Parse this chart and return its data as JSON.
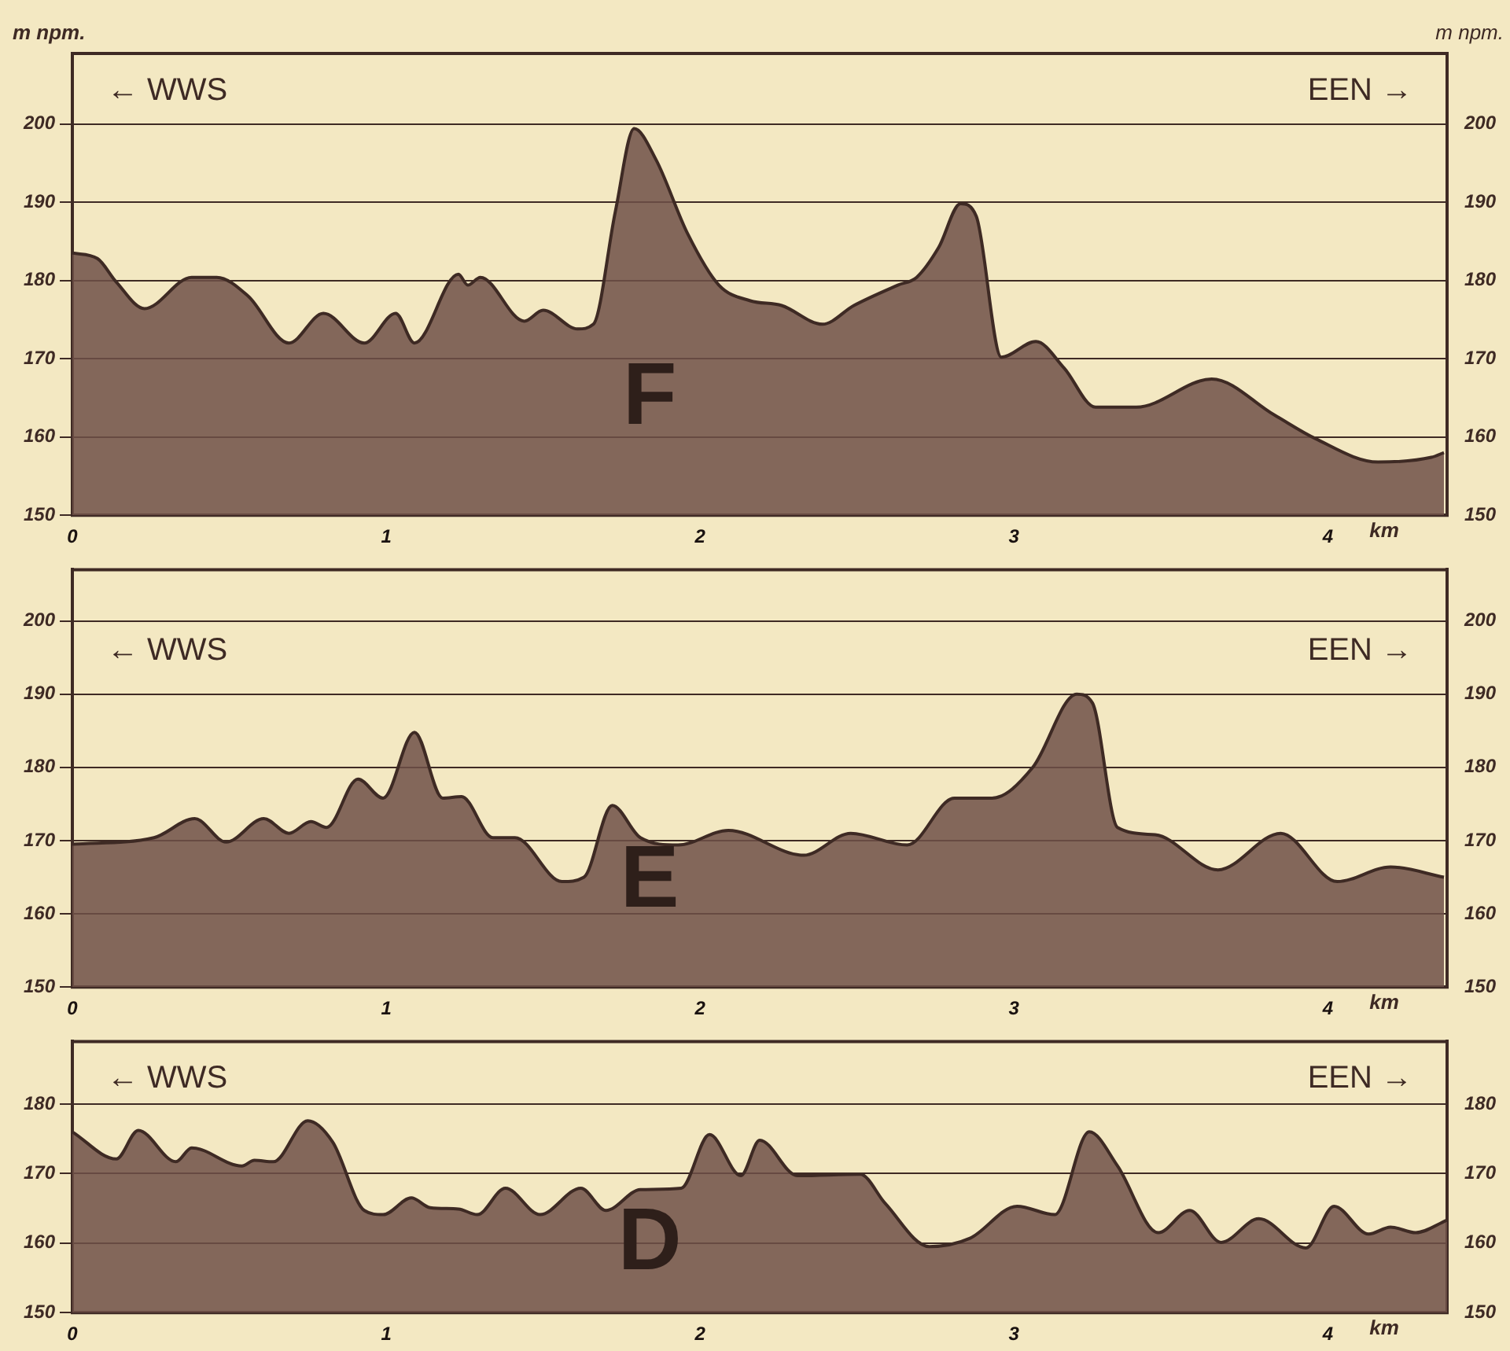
{
  "chart_data": [
    {
      "type": "area",
      "ylabel": "m npm.",
      "y2label": "m npm.",
      "xlabel": "km",
      "annotations": [
        "← WWS",
        "EEN →",
        "F"
      ],
      "color": "#6e5048",
      "x": [
        0,
        0.08,
        0.14,
        0.23,
        0.38,
        0.46,
        0.56,
        0.69,
        0.8,
        0.93,
        1.03,
        1.09,
        1.23,
        1.26,
        1.3,
        1.44,
        1.5,
        1.61,
        1.66,
        1.73,
        1.79,
        1.86,
        1.96,
        2.06,
        2.16,
        2.26,
        2.39,
        2.49,
        2.63,
        2.69,
        2.76,
        2.83,
        2.88,
        2.96,
        3.07,
        3.16,
        3.26,
        3.39,
        3.63,
        3.83,
        3.96,
        4.16,
        4.33,
        4.37
      ],
      "values": [
        183.5,
        182.8,
        179.8,
        176.4,
        180.4,
        180.4,
        178,
        172,
        175.8,
        172,
        175.8,
        172,
        180.8,
        179.4,
        180.4,
        174.8,
        176.2,
        173.8,
        174.4,
        188.8,
        199.4,
        195.4,
        186,
        179.4,
        177.4,
        176.8,
        174.4,
        176.8,
        179.4,
        180.4,
        184.2,
        189.8,
        188.2,
        170.2,
        172.2,
        168.8,
        163.8,
        163.8,
        167.4,
        162.8,
        159.8,
        156.8,
        157.4,
        158
      ],
      "xlim": [
        0,
        4.38
      ],
      "xticks": [
        0,
        1,
        2,
        3,
        4
      ],
      "ylim": [
        150,
        209
      ],
      "yticks": [
        150,
        160,
        170,
        180,
        190,
        200
      ],
      "y2lim": [
        150,
        209
      ],
      "y2ticks": [
        150,
        160,
        170,
        180,
        190,
        200
      ],
      "grid": "y",
      "legend": false
    },
    {
      "type": "area",
      "xlabel": "km",
      "annotations": [
        "← WWS",
        "EEN →",
        "E"
      ],
      "color": "#6e5048",
      "x": [
        0,
        0.26,
        0.39,
        0.49,
        0.61,
        0.69,
        0.76,
        0.81,
        0.91,
        0.99,
        1.09,
        1.18,
        1.24,
        1.34,
        1.41,
        1.56,
        1.63,
        1.72,
        1.81,
        1.93,
        2.09,
        2.33,
        2.48,
        2.66,
        2.81,
        2.93,
        3.06,
        3.2,
        3.25,
        3.33,
        3.45,
        3.65,
        3.85,
        4.03,
        4.2,
        4.37
      ],
      "values": [
        169.5,
        170.4,
        173,
        169.8,
        173,
        171,
        172.6,
        171.8,
        178.4,
        175.8,
        184.8,
        175.8,
        176,
        170.4,
        170.4,
        164.4,
        165,
        174.8,
        170.4,
        169.4,
        171.4,
        168,
        171,
        169.4,
        175.8,
        175.8,
        180,
        190,
        188.8,
        171.8,
        170.8,
        166,
        171,
        164.4,
        166.4,
        165
      ],
      "xlim": [
        0,
        4.38
      ],
      "xticks": [
        0,
        1,
        2,
        3,
        4
      ],
      "ylim": [
        150,
        207
      ],
      "yticks": [
        150,
        160,
        170,
        180,
        190,
        200
      ],
      "y2lim": [
        150,
        207
      ],
      "y2ticks": [
        150,
        160,
        170,
        180,
        190,
        200
      ],
      "grid": "y",
      "legend": false
    },
    {
      "type": "area",
      "xlabel": "km",
      "annotations": [
        "← WWS",
        "EEN →",
        "D"
      ],
      "color": "#6e5048",
      "x": [
        0,
        0.14,
        0.21,
        0.33,
        0.38,
        0.54,
        0.58,
        0.64,
        0.75,
        0.83,
        0.93,
        0.99,
        1.08,
        1.14,
        1.23,
        1.29,
        1.38,
        1.49,
        1.62,
        1.7,
        1.81,
        1.94,
        2.03,
        2.13,
        2.19,
        2.31,
        2.51,
        2.59,
        2.73,
        2.86,
        3.01,
        3.13,
        3.24,
        3.33,
        3.46,
        3.56,
        3.66,
        3.78,
        3.93,
        4.02,
        4.13,
        4.2,
        4.28,
        4.38
      ],
      "values": [
        176,
        172.1,
        176.2,
        171.7,
        173.7,
        171.1,
        171.9,
        171.7,
        177.6,
        174.5,
        164.7,
        164.1,
        166.5,
        165.1,
        164.9,
        164.1,
        167.9,
        164.1,
        167.9,
        164.7,
        167.7,
        167.9,
        175.6,
        169.7,
        174.8,
        169.7,
        169.9,
        165.7,
        159.5,
        160.7,
        165.3,
        164.1,
        176,
        171.1,
        161.5,
        164.7,
        160.1,
        163.5,
        159.3,
        165.3,
        161.3,
        162.3,
        161.5,
        163.3
      ],
      "xlim": [
        0,
        4.38
      ],
      "xticks": [
        0,
        1,
        2,
        3,
        4
      ],
      "ylim": [
        150,
        189
      ],
      "yticks": [
        150,
        160,
        170,
        180
      ],
      "y2lim": [
        150,
        189
      ],
      "y2ticks": [
        150,
        160,
        170,
        180
      ],
      "grid": "y",
      "legend": false
    }
  ]
}
